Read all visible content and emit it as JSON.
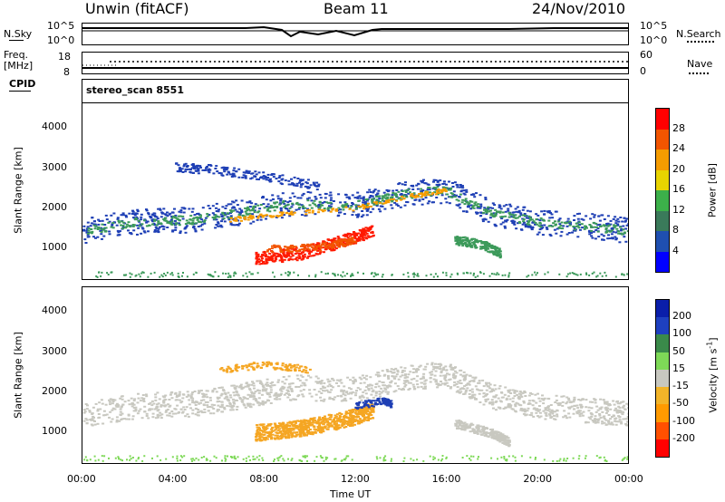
{
  "header": {
    "site": "Unwin (fitACF)",
    "beam": "Beam 11",
    "date": "24/Nov/2010"
  },
  "top_panels": {
    "nsky_label": "N.Sky",
    "nsearch_label": "N.Search",
    "nsky_ticks": [
      "10^5",
      "10^0"
    ],
    "nsearch_ticks": [
      "10^5",
      "10^0"
    ],
    "freq_label": "Freq.",
    "freq_unit": "[MHz]",
    "freq_ticks": [
      "18",
      "8"
    ],
    "nave_label": "Nave",
    "nave_ticks": [
      "60",
      "0"
    ],
    "cpid_label": "CPID",
    "cpid_value": "stereo_scan 8551"
  },
  "colors": {
    "power_colorbar": [
      "#0000ff",
      "#1f4fb0",
      "#3a7a5a",
      "#3cb04a",
      "#e8d400",
      "#f59c00",
      "#f25500",
      "#ff0000"
    ],
    "velocity_colorbar": [
      "#ff0000",
      "#ff5000",
      "#ff9a00",
      "#f2b429",
      "#c8c8c0",
      "#7ed957",
      "#3a8a4a",
      "#1e40c0",
      "#0a1eaa"
    ]
  },
  "chart_data": [
    {
      "type": "heatmap",
      "name": "power",
      "ylabel": "Slant Range [km]",
      "yticks": [
        "4000",
        "3000",
        "2000",
        "1000"
      ],
      "ylim": [
        200,
        4600
      ],
      "colorbar_label": "Power [dB]",
      "colorbar_ticks": [
        "28",
        "24",
        "20",
        "16",
        "12",
        "8",
        "4"
      ]
    },
    {
      "type": "heatmap",
      "name": "velocity",
      "ylabel": "Slant Range [km]",
      "yticks": [
        "4000",
        "3000",
        "2000",
        "1000"
      ],
      "ylim": [
        200,
        4600
      ],
      "colorbar_label": "Velocity [m s",
      "colorbar_label_sup": "-1",
      "colorbar_label_end": "]",
      "colorbar_ticks": [
        "200",
        "100",
        "50",
        "15",
        "-15",
        "-50",
        "-100",
        "-200"
      ]
    }
  ],
  "xaxis": {
    "ticks": [
      "00:00",
      "04:00",
      "08:00",
      "12:00",
      "16:00",
      "20:00",
      "00:00"
    ],
    "label": "Time UT"
  }
}
